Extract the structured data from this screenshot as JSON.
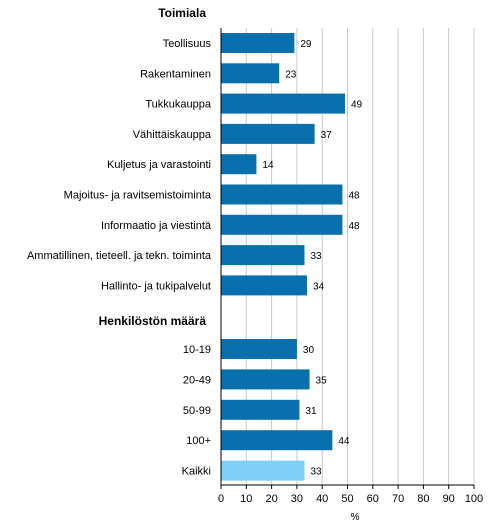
{
  "chart_data": {
    "type": "bar",
    "orientation": "horizontal",
    "groups": [
      {
        "heading": "Toimiala",
        "categories": [
          "Teollisuus",
          "Rakentaminen",
          "Tukkukauppa",
          "Vähittäiskauppa",
          "Kuljetus ja varastointi",
          "Majoitus- ja ravitsemistoiminta",
          "Informaatio ja viestintä",
          "Ammatillinen, tieteell. ja tekn. toiminta",
          "Hallinto- ja tukipalvelut"
        ],
        "values": [
          29,
          23,
          49,
          37,
          14,
          48,
          48,
          33,
          34
        ]
      },
      {
        "heading": "Henkilöstön määrä",
        "categories": [
          "10-19",
          "20-49",
          "50-99",
          "100+",
          "Kaikki"
        ],
        "values": [
          30,
          35,
          31,
          44,
          33
        ]
      }
    ],
    "highlight_category": "Kaikki",
    "xlabel": "%",
    "xlim": [
      0,
      100
    ],
    "xticks": [
      0,
      10,
      20,
      30,
      40,
      50,
      60,
      70,
      80,
      90,
      100
    ],
    "grid": true,
    "colors": {
      "bar": "#0a6fad",
      "highlight": "#7fcff6",
      "grid": "#c8c8c8",
      "axis": "#000000"
    }
  }
}
